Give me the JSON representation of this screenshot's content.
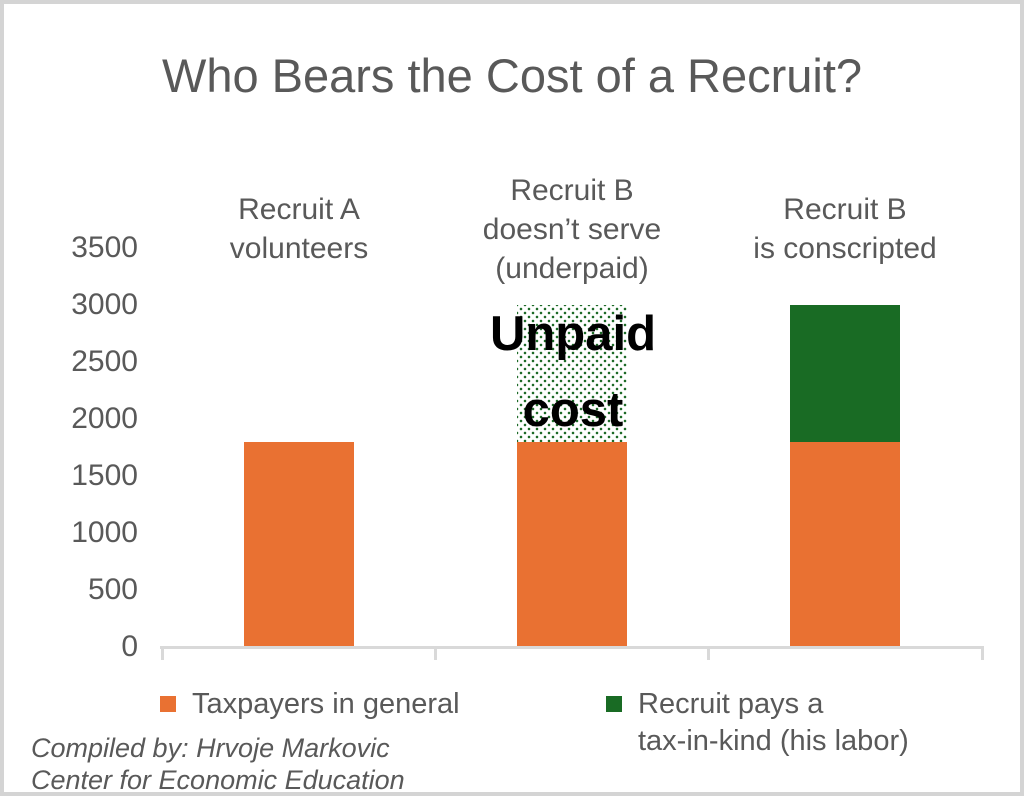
{
  "title": "Who Bears the Cost of a Recruit?",
  "colors": {
    "orange": "#E97132",
    "green": "#196B24",
    "axis_gray": "#D9D9D9",
    "text_gray": "#595959",
    "annotation_black": "#000000"
  },
  "legend": [
    {
      "label": "Taxpayers in general"
    },
    {
      "label": "Recruit pays a\ntax-in-kind (his labor)"
    }
  ],
  "credit": {
    "line1": "Compiled by: Hrvoje Markovic",
    "line2": "Center for Economic Education"
  },
  "chart_data": {
    "type": "bar",
    "stacked": true,
    "title": "Who Bears the Cost of a Recruit?",
    "categories": [
      "Recruit A\nvolunteers",
      "Recruit B\ndoesn’t serve\n(underpaid)",
      "Recruit B\nis conscripted"
    ],
    "series": [
      {
        "name": "Taxpayers in general",
        "color": "#E97132",
        "style": "solid",
        "values": [
          1800,
          1800,
          1800
        ]
      },
      {
        "name": "Unpaid cost",
        "color": "#1E6B28",
        "style": "dotted-pattern",
        "values": [
          0,
          1200,
          0
        ]
      },
      {
        "name": "Recruit pays a tax-in-kind (his labor)",
        "color": "#196B24",
        "style": "solid",
        "values": [
          0,
          0,
          1200
        ]
      }
    ],
    "totals": [
      1800,
      3000,
      3000
    ],
    "ylim": [
      0,
      3500
    ],
    "yticks": [
      0,
      500,
      1000,
      1500,
      2000,
      2500,
      3000,
      3500
    ],
    "grid": false,
    "legend_position": "bottom",
    "annotation": {
      "text": "Unpaid\ncost",
      "category_index": 1,
      "value_span": [
        1800,
        3000
      ]
    }
  }
}
